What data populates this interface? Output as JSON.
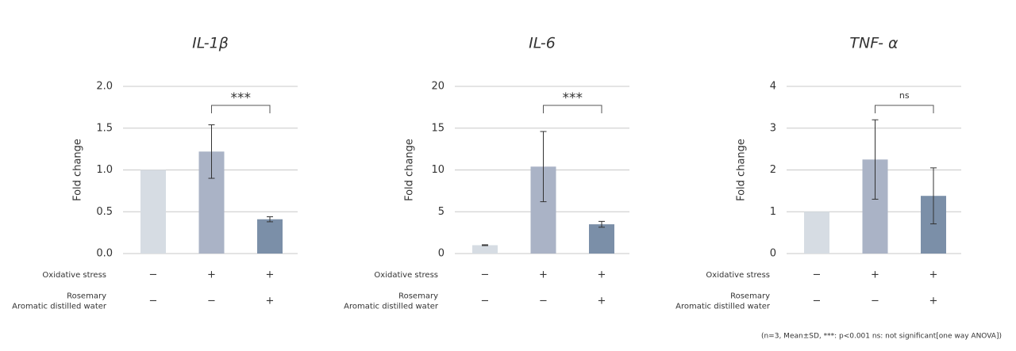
{
  "chart_data": [
    {
      "type": "bar",
      "title": "IL-1β",
      "ylabel": "Fold change",
      "values": [
        1.0,
        1.22,
        0.41
      ],
      "errors": [
        0,
        0.32,
        0.03
      ],
      "colors": [
        "#d6dce3",
        "#aab3c6",
        "#7b8fa8"
      ],
      "ylim": [
        0,
        2
      ],
      "yticks": [
        {
          "value": 0,
          "label": "0.0"
        },
        {
          "value": 0.5,
          "label": "0.5"
        },
        {
          "value": 1,
          "label": "1.0"
        },
        {
          "value": 1.5,
          "label": "1.5"
        },
        {
          "value": 2,
          "label": "2.0"
        }
      ],
      "grid": true,
      "annotation": "***",
      "conditions": [
        {
          "label": [
            "Oxidative stress"
          ],
          "marks": [
            "−",
            "+",
            "+"
          ]
        },
        {
          "label": [
            "Rosemary",
            "Aromatic distilled water"
          ],
          "marks": [
            "−",
            "−",
            "+"
          ]
        }
      ]
    },
    {
      "type": "bar",
      "title": "IL-6",
      "ylabel": "Fold change",
      "values": [
        1.0,
        10.4,
        3.5
      ],
      "errors": [
        0.05,
        4.2,
        0.35
      ],
      "colors": [
        "#d6dce3",
        "#aab3c6",
        "#7b8fa8"
      ],
      "ylim": [
        0,
        20
      ],
      "yticks": [
        0,
        5,
        10,
        15,
        20
      ],
      "grid": true,
      "annotation": "***",
      "conditions": [
        {
          "label": [
            "Oxidative stress"
          ],
          "marks": [
            "−",
            "+",
            "+"
          ]
        },
        {
          "label": [
            "Rosemary",
            "Aromatic distilled water"
          ],
          "marks": [
            "−",
            "−",
            "+"
          ]
        }
      ]
    },
    {
      "type": "bar",
      "title": "TNF- α",
      "ylabel": "Fold change",
      "values": [
        1.0,
        2.25,
        1.38
      ],
      "errors": [
        0,
        0.95,
        0.67
      ],
      "colors": [
        "#d6dce3",
        "#aab3c6",
        "#7b8fa8"
      ],
      "ylim": [
        0,
        4
      ],
      "yticks": [
        0,
        1,
        2,
        3,
        4
      ],
      "grid": true,
      "annotation": "ns",
      "conditions": [
        {
          "label": [
            "Oxidative stress"
          ],
          "marks": [
            "−",
            "+",
            "+"
          ]
        },
        {
          "label": [
            "Rosemary",
            "Aromatic distilled water"
          ],
          "marks": [
            "−",
            "−",
            "+"
          ]
        }
      ]
    }
  ],
  "footnote": "(n=3, Mean±SD, ***: p<0.001  ns: not significant[one way ANOVA])"
}
